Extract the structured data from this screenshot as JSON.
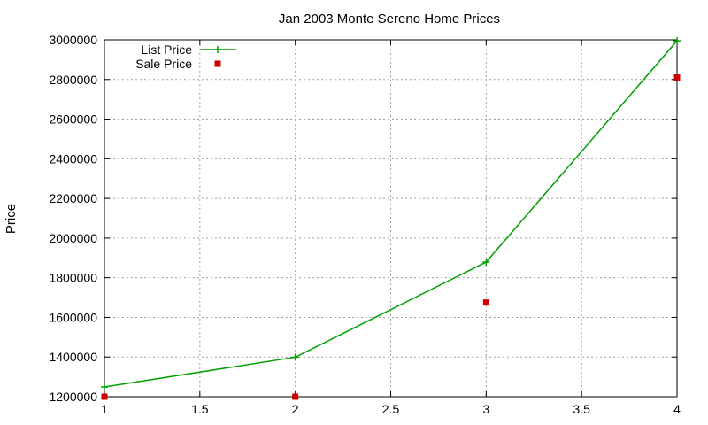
{
  "chart_data": {
    "type": "line",
    "title": "Jan 2003 Monte Sereno Home Prices",
    "xlabel": "",
    "ylabel": "Price",
    "xlim": [
      1,
      4
    ],
    "ylim": [
      1200000,
      3000000
    ],
    "x_ticks": [
      "1",
      "1.5",
      "2",
      "2.5",
      "3",
      "3.5",
      "4"
    ],
    "y_ticks": [
      "1200000",
      "1400000",
      "1600000",
      "1800000",
      "2000000",
      "2200000",
      "2400000",
      "2600000",
      "2800000",
      "3000000"
    ],
    "grid": true,
    "legend_position": "top-left",
    "series": [
      {
        "name": "List Price",
        "style": "line+cross",
        "color": "#00a000",
        "points": [
          [
            1,
            1249000
          ],
          [
            2,
            1399000
          ],
          [
            3,
            1879000
          ],
          [
            4,
            2995000
          ]
        ]
      },
      {
        "name": "Sale Price",
        "style": "square",
        "color": "#cc0000",
        "points": [
          [
            1,
            1200000
          ],
          [
            2,
            1200000
          ],
          [
            3,
            1675000
          ],
          [
            4,
            2810000
          ]
        ]
      }
    ]
  }
}
